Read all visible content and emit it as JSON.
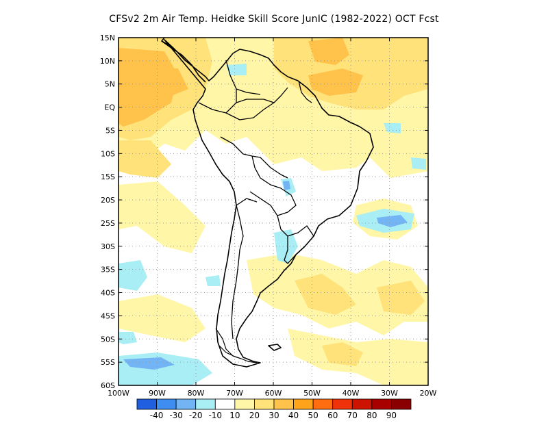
{
  "title": "CFSv2  2m Air Temp. Heidke Skill Score JunIC (1982-2022) OCT Fcst",
  "map": {
    "lon_range": [
      -100,
      -20
    ],
    "lat_range": [
      -60,
      15
    ],
    "lat_ticks": [
      "15N",
      "10N",
      "5N",
      "EQ",
      "5S",
      "10S",
      "15S",
      "20S",
      "25S",
      "30S",
      "35S",
      "40S",
      "45S",
      "50S",
      "55S",
      "60S"
    ],
    "lon_ticks": [
      "100W",
      "90W",
      "80W",
      "70W",
      "60W",
      "50W",
      "40W",
      "30W",
      "20W"
    ],
    "grid": "dotted"
  },
  "colorbar": {
    "labels": [
      "-40",
      "-30",
      "-20",
      "-10",
      "10",
      "20",
      "30",
      "40",
      "50",
      "60",
      "70",
      "80",
      "90"
    ],
    "colors": [
      "#1f5fe0",
      "#3d8ef0",
      "#73b4f4",
      "#a8eef4",
      "#ffffff",
      "#fff6a8",
      "#ffe27a",
      "#ffc24a",
      "#ffa31a",
      "#ff6d10",
      "#f0320a",
      "#cc1300",
      "#a80000"
    ]
  },
  "legend_colors": {
    "ocean_neutral": "#ffffff",
    "pale_yellow": "#fff6a8",
    "yellow": "#ffe27a",
    "orange": "#ffc24a",
    "cyan": "#a8eef4",
    "blue": "#73b4f4"
  }
}
